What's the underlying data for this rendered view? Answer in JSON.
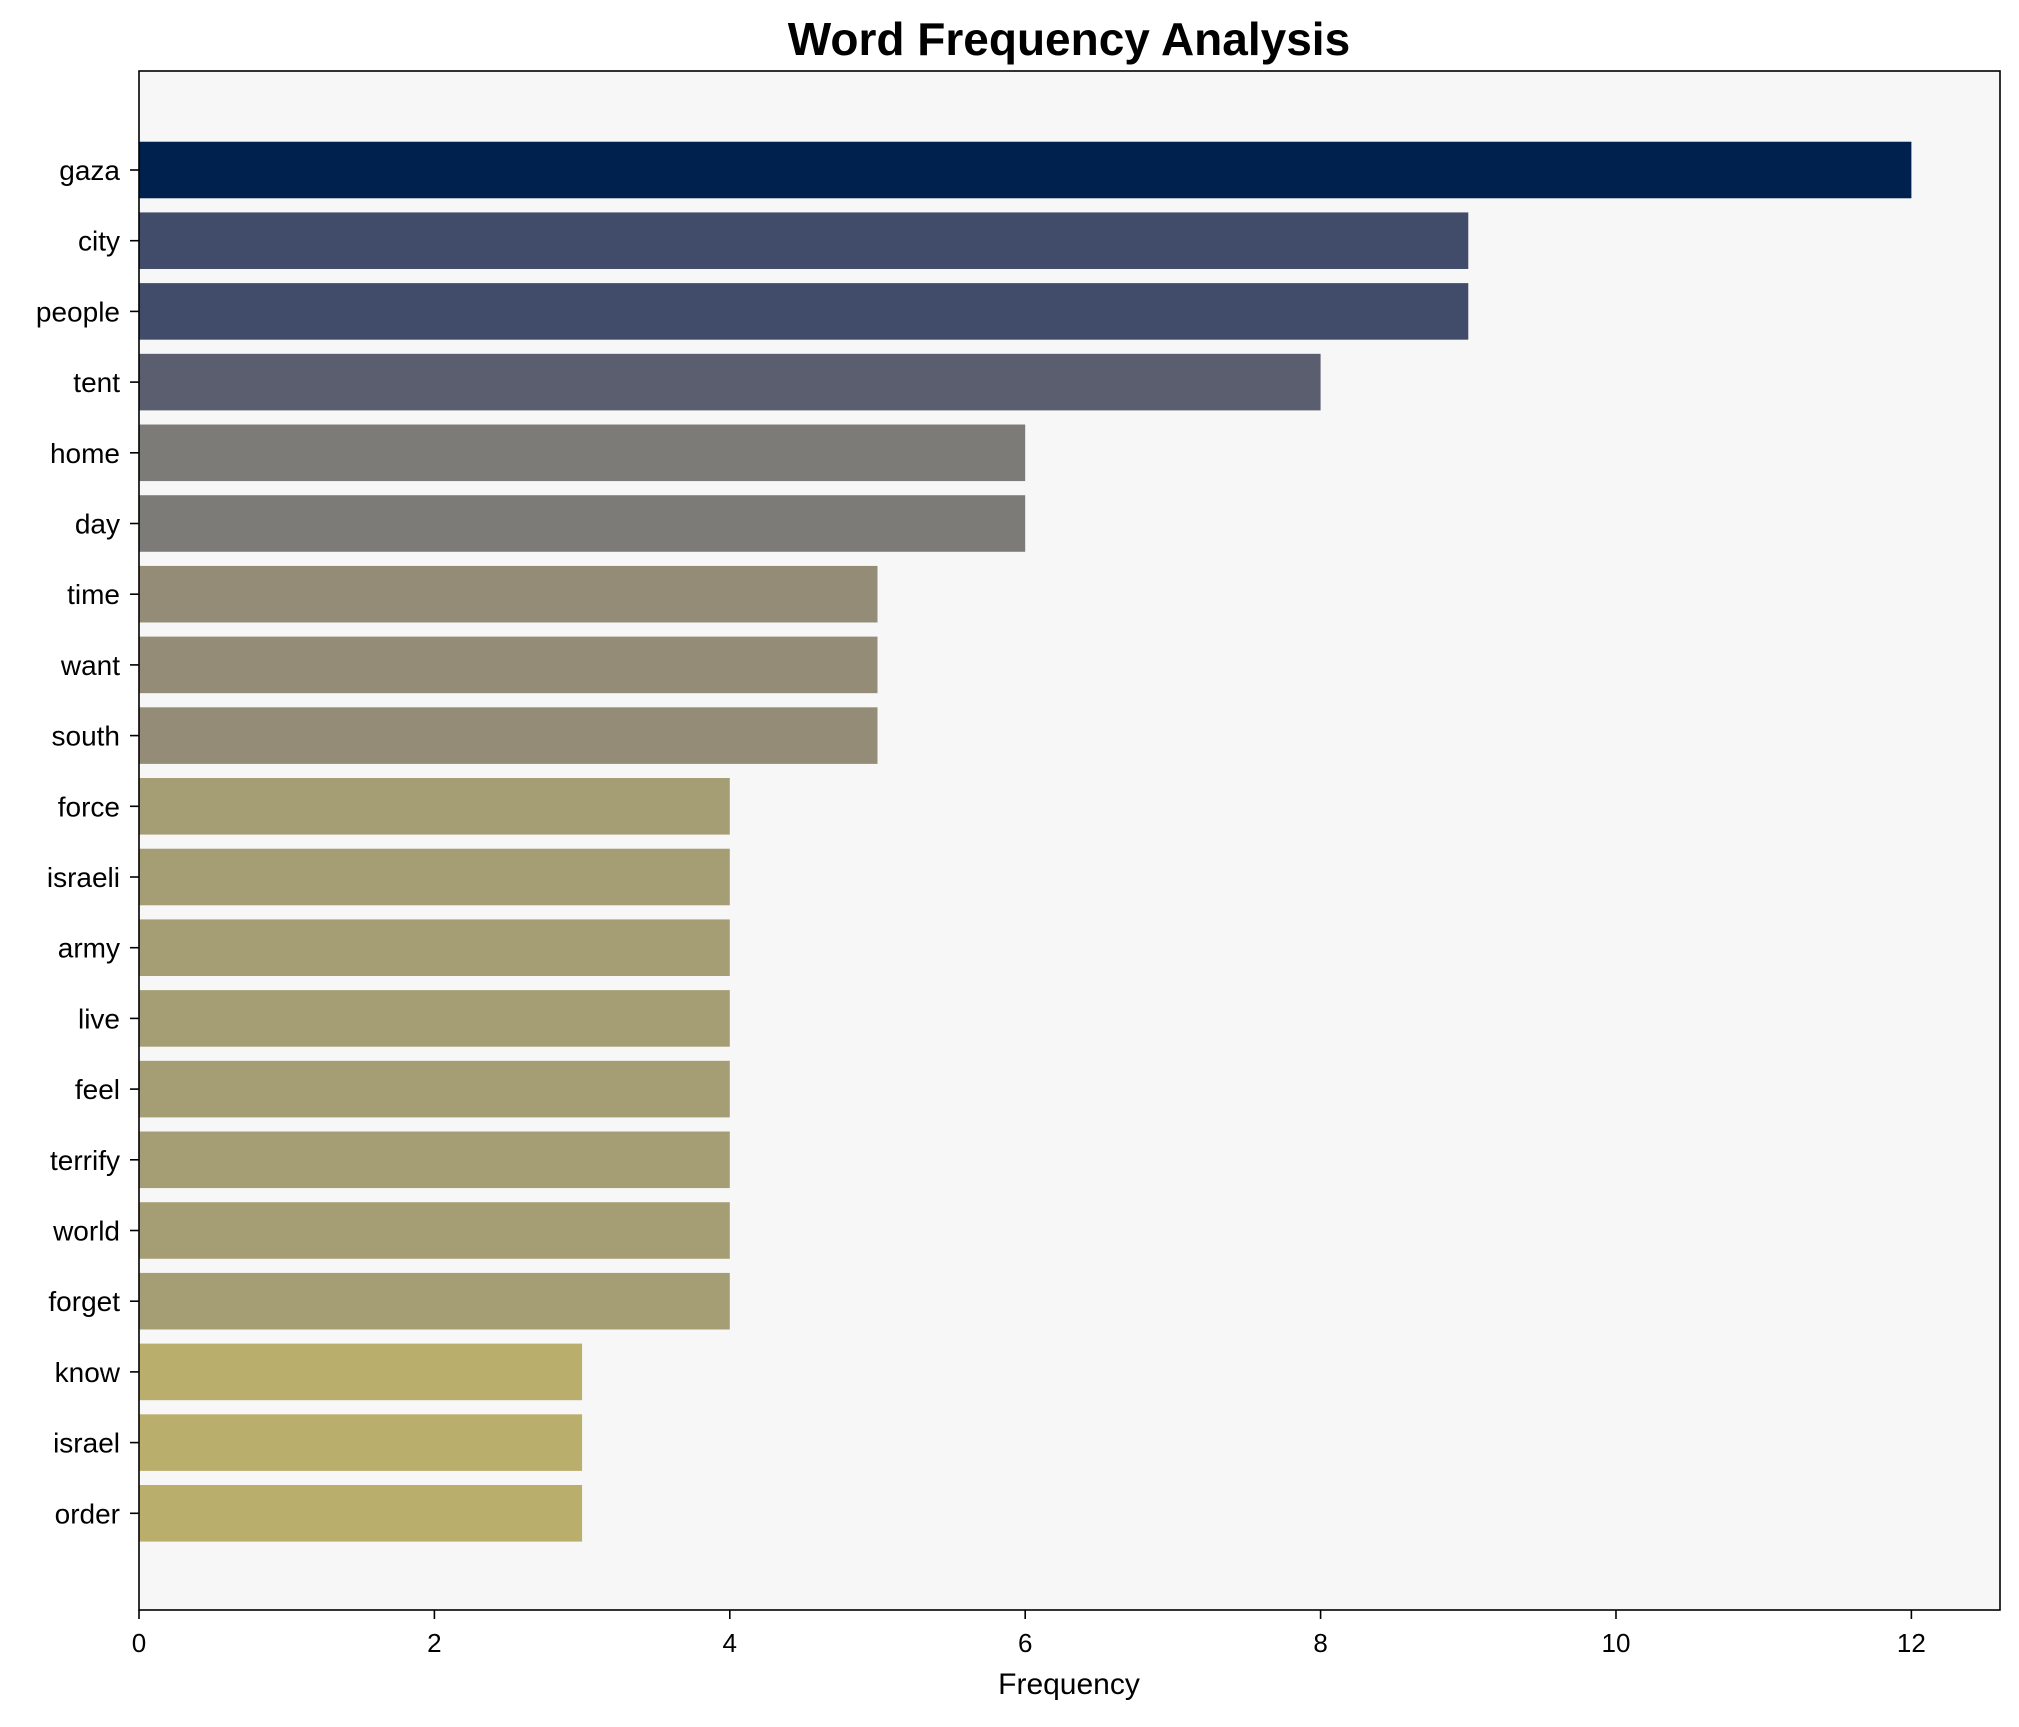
{
  "chart_data": {
    "type": "bar",
    "orientation": "horizontal",
    "title": "Word Frequency Analysis",
    "xlabel": "Frequency",
    "ylabel": "",
    "xlim": [
      0,
      12.6
    ],
    "xticks": [
      0,
      2,
      4,
      6,
      8,
      10,
      12
    ],
    "grid": false,
    "background": "#f7f7f7",
    "categories": [
      "gaza",
      "city",
      "people",
      "tent",
      "home",
      "day",
      "time",
      "want",
      "south",
      "force",
      "israeli",
      "army",
      "live",
      "feel",
      "terrify",
      "world",
      "forget",
      "know",
      "israel",
      "order"
    ],
    "values": [
      12,
      9,
      9,
      8,
      6,
      6,
      5,
      5,
      5,
      4,
      4,
      4,
      4,
      4,
      4,
      4,
      4,
      3,
      3,
      3
    ],
    "colors": [
      "#00204e",
      "#414c6b",
      "#414c6b",
      "#5a5e6e",
      "#7c7b77",
      "#7c7b77",
      "#948c77",
      "#948c77",
      "#948c77",
      "#a59d73",
      "#a59d73",
      "#a59d73",
      "#a59d73",
      "#a59d73",
      "#a59d73",
      "#a59d73",
      "#a59d73",
      "#baae6c",
      "#baae6c",
      "#baae6c"
    ]
  }
}
